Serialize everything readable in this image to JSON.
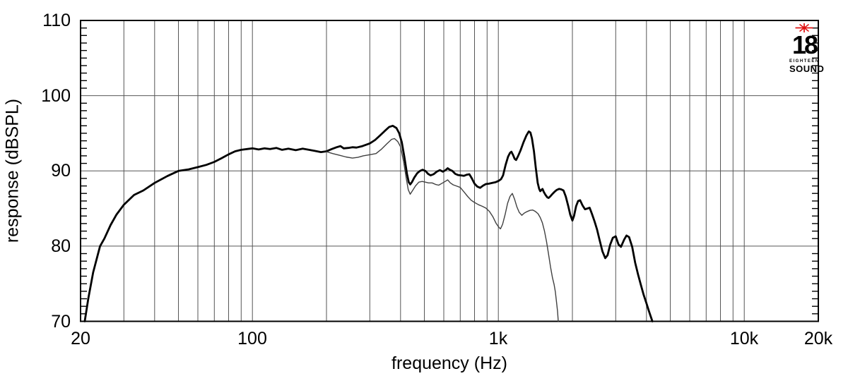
{
  "logo": {
    "number": "18",
    "brand_top": "EIGHTEEN",
    "brand_bottom": "SOUND",
    "star_color": "#e01010"
  },
  "chart_data": {
    "type": "line",
    "title": "",
    "xlabel": "frequency (Hz)",
    "ylabel": "response (dBSPL)",
    "x_scale": "log",
    "grid": true,
    "legend": "none",
    "xlim": [
      20,
      20000
    ],
    "ylim": [
      70,
      110
    ],
    "x_ticks": [
      {
        "v": 20,
        "label": "20"
      },
      {
        "v": 100,
        "label": "100"
      },
      {
        "v": 1000,
        "label": "1k"
      },
      {
        "v": 10000,
        "label": "10k"
      },
      {
        "v": 20000,
        "label": "20k"
      }
    ],
    "y_ticks": [
      {
        "v": 110,
        "label": "110"
      },
      {
        "v": 100,
        "label": "100"
      },
      {
        "v": 90,
        "label": "90"
      },
      {
        "v": 80,
        "label": "80"
      },
      {
        "v": 70,
        "label": "70"
      }
    ],
    "x_gridlines": [
      30,
      40,
      50,
      60,
      70,
      80,
      90,
      100,
      200,
      300,
      400,
      500,
      600,
      700,
      800,
      900,
      1000,
      2000,
      3000,
      4000,
      5000,
      6000,
      7000,
      8000,
      9000,
      10000
    ],
    "y_gridlines": [
      80,
      90,
      100
    ],
    "y_minor_tick_step": 1,
    "grid_color": "#565656",
    "axis_color": "#000000",
    "series": [
      {
        "name": "response-curve-thick",
        "color": "#000000",
        "width": 2.8,
        "points": [
          [
            20.8,
            70.0
          ],
          [
            21.5,
            73.0
          ],
          [
            22.5,
            76.5
          ],
          [
            24,
            80.0
          ],
          [
            25,
            81.0
          ],
          [
            26.5,
            82.8
          ],
          [
            28,
            84.2
          ],
          [
            30,
            85.5
          ],
          [
            33,
            86.8
          ],
          [
            36,
            87.4
          ],
          [
            40,
            88.4
          ],
          [
            45,
            89.3
          ],
          [
            50,
            90.0
          ],
          [
            55,
            90.2
          ],
          [
            60,
            90.5
          ],
          [
            65,
            90.8
          ],
          [
            70,
            91.2
          ],
          [
            75,
            91.7
          ],
          [
            80,
            92.2
          ],
          [
            85,
            92.6
          ],
          [
            90,
            92.8
          ],
          [
            95,
            92.9
          ],
          [
            100,
            93.0
          ],
          [
            106,
            92.85
          ],
          [
            112,
            93.0
          ],
          [
            118,
            92.9
          ],
          [
            125,
            93.05
          ],
          [
            132,
            92.8
          ],
          [
            140,
            92.95
          ],
          [
            150,
            92.75
          ],
          [
            160,
            92.95
          ],
          [
            170,
            92.8
          ],
          [
            180,
            92.65
          ],
          [
            190,
            92.5
          ],
          [
            200,
            92.6
          ],
          [
            210,
            92.9
          ],
          [
            220,
            93.15
          ],
          [
            228,
            93.3
          ],
          [
            235,
            93.0
          ],
          [
            245,
            93.05
          ],
          [
            255,
            93.15
          ],
          [
            265,
            93.1
          ],
          [
            280,
            93.3
          ],
          [
            300,
            93.65
          ],
          [
            315,
            94.1
          ],
          [
            330,
            94.7
          ],
          [
            345,
            95.3
          ],
          [
            360,
            95.85
          ],
          [
            372,
            96.0
          ],
          [
            385,
            95.7
          ],
          [
            395,
            95.0
          ],
          [
            405,
            93.8
          ],
          [
            415,
            91.8
          ],
          [
            425,
            89.6
          ],
          [
            432,
            88.5
          ],
          [
            438,
            88.2
          ],
          [
            445,
            88.5
          ],
          [
            455,
            89.1
          ],
          [
            468,
            89.7
          ],
          [
            480,
            90.0
          ],
          [
            492,
            90.15
          ],
          [
            505,
            90.0
          ],
          [
            518,
            89.6
          ],
          [
            530,
            89.4
          ],
          [
            545,
            89.55
          ],
          [
            562,
            89.9
          ],
          [
            578,
            90.1
          ],
          [
            595,
            89.9
          ],
          [
            610,
            90.1
          ],
          [
            622,
            90.35
          ],
          [
            635,
            90.15
          ],
          [
            650,
            90.0
          ],
          [
            668,
            89.6
          ],
          [
            685,
            89.45
          ],
          [
            705,
            89.4
          ],
          [
            725,
            89.35
          ],
          [
            745,
            89.5
          ],
          [
            762,
            89.55
          ],
          [
            780,
            89.0
          ],
          [
            800,
            88.3
          ],
          [
            822,
            87.9
          ],
          [
            843,
            87.75
          ],
          [
            868,
            88.05
          ],
          [
            890,
            88.25
          ],
          [
            915,
            88.3
          ],
          [
            945,
            88.4
          ],
          [
            975,
            88.5
          ],
          [
            1000,
            88.65
          ],
          [
            1025,
            88.9
          ],
          [
            1045,
            89.4
          ],
          [
            1070,
            90.8
          ],
          [
            1095,
            91.9
          ],
          [
            1115,
            92.4
          ],
          [
            1130,
            92.55
          ],
          [
            1148,
            92.1
          ],
          [
            1165,
            91.6
          ],
          [
            1180,
            91.45
          ],
          [
            1200,
            91.9
          ],
          [
            1230,
            92.7
          ],
          [
            1265,
            93.8
          ],
          [
            1300,
            94.7
          ],
          [
            1330,
            95.25
          ],
          [
            1350,
            95.1
          ],
          [
            1370,
            94.3
          ],
          [
            1395,
            92.6
          ],
          [
            1420,
            90.4
          ],
          [
            1445,
            88.4
          ],
          [
            1465,
            87.6
          ],
          [
            1480,
            87.3
          ],
          [
            1495,
            87.45
          ],
          [
            1512,
            87.6
          ],
          [
            1530,
            87.2
          ],
          [
            1555,
            86.8
          ],
          [
            1580,
            86.5
          ],
          [
            1600,
            86.4
          ],
          [
            1625,
            86.6
          ],
          [
            1655,
            86.9
          ],
          [
            1690,
            87.2
          ],
          [
            1725,
            87.45
          ],
          [
            1765,
            87.6
          ],
          [
            1800,
            87.55
          ],
          [
            1840,
            87.4
          ],
          [
            1880,
            86.6
          ],
          [
            1925,
            85.3
          ],
          [
            1960,
            84.2
          ],
          [
            2000,
            83.4
          ],
          [
            2030,
            84.0
          ],
          [
            2070,
            85.3
          ],
          [
            2110,
            86.0
          ],
          [
            2150,
            86.1
          ],
          [
            2200,
            85.4
          ],
          [
            2250,
            84.9
          ],
          [
            2300,
            85.0
          ],
          [
            2350,
            85.1
          ],
          [
            2400,
            84.3
          ],
          [
            2460,
            83.3
          ],
          [
            2520,
            82.2
          ],
          [
            2580,
            80.8
          ],
          [
            2650,
            79.3
          ],
          [
            2720,
            78.4
          ],
          [
            2780,
            78.8
          ],
          [
            2850,
            80.2
          ],
          [
            2920,
            81.1
          ],
          [
            3000,
            81.3
          ],
          [
            3080,
            80.2
          ],
          [
            3150,
            79.9
          ],
          [
            3250,
            80.9
          ],
          [
            3320,
            81.4
          ],
          [
            3400,
            81.2
          ],
          [
            3500,
            79.9
          ],
          [
            3600,
            77.8
          ],
          [
            3700,
            76.2
          ],
          [
            3800,
            74.8
          ],
          [
            3900,
            73.5
          ],
          [
            4000,
            72.4
          ],
          [
            4080,
            71.5
          ],
          [
            4150,
            70.8
          ],
          [
            4230,
            70.0
          ]
        ]
      },
      {
        "name": "response-curve-thin",
        "color": "#404040",
        "width": 1.4,
        "points": [
          [
            200,
            92.55
          ],
          [
            212,
            92.3
          ],
          [
            225,
            92.1
          ],
          [
            240,
            91.85
          ],
          [
            255,
            91.7
          ],
          [
            268,
            91.8
          ],
          [
            282,
            92.0
          ],
          [
            300,
            92.15
          ],
          [
            318,
            92.3
          ],
          [
            335,
            92.9
          ],
          [
            352,
            93.6
          ],
          [
            368,
            94.2
          ],
          [
            378,
            94.3
          ],
          [
            390,
            93.9
          ],
          [
            400,
            93.2
          ],
          [
            412,
            91.2
          ],
          [
            422,
            89.0
          ],
          [
            430,
            87.5
          ],
          [
            438,
            86.9
          ],
          [
            448,
            87.4
          ],
          [
            460,
            88.0
          ],
          [
            475,
            88.5
          ],
          [
            490,
            88.6
          ],
          [
            505,
            88.5
          ],
          [
            520,
            88.4
          ],
          [
            538,
            88.4
          ],
          [
            555,
            88.2
          ],
          [
            572,
            88.1
          ],
          [
            590,
            88.35
          ],
          [
            608,
            88.6
          ],
          [
            622,
            88.8
          ],
          [
            638,
            88.4
          ],
          [
            655,
            88.15
          ],
          [
            675,
            88.0
          ],
          [
            700,
            87.8
          ],
          [
            725,
            87.2
          ],
          [
            750,
            86.6
          ],
          [
            775,
            86.1
          ],
          [
            800,
            85.8
          ],
          [
            830,
            85.5
          ],
          [
            860,
            85.3
          ],
          [
            890,
            85.05
          ],
          [
            920,
            84.6
          ],
          [
            950,
            83.9
          ],
          [
            980,
            83.0
          ],
          [
            1005,
            82.5
          ],
          [
            1020,
            82.3
          ],
          [
            1040,
            82.9
          ],
          [
            1065,
            84.2
          ],
          [
            1090,
            85.7
          ],
          [
            1115,
            86.6
          ],
          [
            1140,
            87.0
          ],
          [
            1165,
            86.2
          ],
          [
            1190,
            85.2
          ],
          [
            1215,
            84.5
          ],
          [
            1245,
            84.1
          ],
          [
            1275,
            84.4
          ],
          [
            1310,
            84.6
          ],
          [
            1345,
            84.75
          ],
          [
            1380,
            84.8
          ],
          [
            1415,
            84.6
          ],
          [
            1450,
            84.3
          ],
          [
            1480,
            83.8
          ],
          [
            1510,
            83.1
          ],
          [
            1540,
            82.0
          ],
          [
            1570,
            80.6
          ],
          [
            1600,
            78.9
          ],
          [
            1630,
            77.2
          ],
          [
            1660,
            75.8
          ],
          [
            1685,
            74.9
          ],
          [
            1705,
            73.9
          ],
          [
            1725,
            72.5
          ],
          [
            1740,
            71.3
          ],
          [
            1752,
            70.0
          ]
        ]
      }
    ]
  }
}
